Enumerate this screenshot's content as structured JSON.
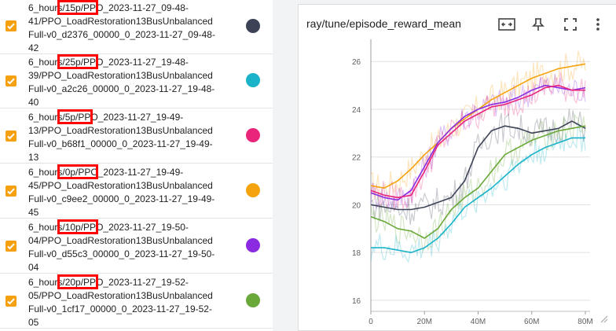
{
  "runs": [
    {
      "lines": [
        "6_hours/15p/PPO_2023-11-27_09-48-",
        "41/PPO_LoadRestoration13BusUnbalanced",
        "Full-v0_d2376_00000_0_2023-11-27_09-48-",
        "42"
      ],
      "color": "#3d4357",
      "checked": true
    },
    {
      "lines": [
        "6_hours/25p/PPO_2023-11-27_19-48-",
        "39/PPO_LoadRestoration13BusUnbalanced",
        "Full-v0_a2c26_00000_0_2023-11-27_19-48-",
        "40"
      ],
      "color": "#1ab3c9",
      "checked": true
    },
    {
      "lines": [
        "6_hours/5p/PPO_2023-11-27_19-49-",
        "13/PPO_LoadRestoration13BusUnbalanced",
        "Full-v0_b68f1_00000_0_2023-11-27_19-49-",
        "13"
      ],
      "color": "#e8257a",
      "checked": true
    },
    {
      "lines": [
        "6_hours/0p/PPO_2023-11-27_19-49-",
        "45/PPO_LoadRestoration13BusUnbalanced",
        "Full-v0_c9ee2_00000_0_2023-11-27_19-49-",
        "45"
      ],
      "color": "#f5a30f",
      "checked": true
    },
    {
      "lines": [
        "6_hours/10p/PPO_2023-11-27_19-50-",
        "04/PPO_LoadRestoration13BusUnbalanced",
        "Full-v0_d55c3_00000_0_2023-11-27_19-50-",
        "04"
      ],
      "color": "#8a2be2",
      "checked": true
    },
    {
      "lines": [
        "6_hours/20p/PPO_2023-11-27_19-52-",
        "05/PPO_LoadRestoration13BusUnbalanced",
        "Full-v0_1cf17_00000_0_2023-11-27_19-52-",
        "05"
      ],
      "color": "#6aa83a",
      "checked": true
    }
  ],
  "card": {
    "title": "ray/tune/episode_reward_mean",
    "icons": [
      "fit-domain-icon",
      "pin-icon",
      "fullscreen-icon",
      "more-vert-icon"
    ]
  },
  "chart_data": {
    "type": "line",
    "x_unit": "steps",
    "xlim": [
      0,
      80000000
    ],
    "ylim": [
      15.8,
      26.6
    ],
    "x_ticks": [
      0,
      20000000,
      40000000,
      60000000,
      80000000
    ],
    "x_tick_labels": [
      "0",
      "20M",
      "40M",
      "60M",
      "80M"
    ],
    "y_ticks": [
      16,
      18,
      20,
      22,
      24,
      26
    ],
    "y_tick_labels": [
      "16",
      "18",
      "20",
      "22",
      "24",
      "26"
    ],
    "grid": "horizontal",
    "legend": "none",
    "series": [
      {
        "color": "#f5a30f",
        "x": [
          0,
          5000000,
          10000000,
          15000000,
          20000000,
          25000000,
          30000000,
          35000000,
          40000000,
          45000000,
          50000000,
          55000000,
          60000000,
          65000000,
          70000000,
          75000000,
          80000000
        ],
        "y": [
          20.8,
          20.7,
          21.0,
          21.5,
          22.1,
          22.6,
          23.2,
          23.6,
          24.0,
          24.4,
          24.7,
          25.0,
          25.3,
          25.5,
          25.7,
          25.8,
          25.9
        ]
      },
      {
        "color": "#8a2be2",
        "x": [
          0,
          5000000,
          10000000,
          15000000,
          20000000,
          25000000,
          30000000,
          35000000,
          40000000,
          45000000,
          50000000,
          55000000,
          60000000,
          65000000,
          70000000,
          75000000,
          80000000
        ],
        "y": [
          20.5,
          20.3,
          20.2,
          20.6,
          21.6,
          22.6,
          23.2,
          23.7,
          24.0,
          24.2,
          24.3,
          24.5,
          24.8,
          25.0,
          24.9,
          24.8,
          24.9
        ]
      },
      {
        "color": "#e8257a",
        "x": [
          0,
          5000000,
          10000000,
          15000000,
          20000000,
          25000000,
          30000000,
          35000000,
          40000000,
          45000000,
          50000000,
          55000000,
          60000000,
          65000000,
          70000000,
          75000000,
          80000000
        ],
        "y": [
          20.6,
          20.4,
          20.3,
          20.4,
          21.4,
          22.5,
          23.0,
          23.5,
          23.8,
          24.1,
          24.2,
          24.4,
          24.6,
          24.9,
          25.0,
          24.8,
          24.8
        ]
      },
      {
        "color": "#3d4357",
        "x": [
          0,
          5000000,
          10000000,
          15000000,
          20000000,
          25000000,
          30000000,
          35000000,
          40000000,
          45000000,
          50000000,
          55000000,
          60000000,
          65000000,
          70000000,
          75000000,
          80000000
        ],
        "y": [
          20.0,
          19.9,
          19.8,
          19.8,
          19.9,
          20.1,
          20.3,
          21.0,
          22.4,
          23.1,
          23.3,
          23.2,
          23.0,
          23.1,
          23.2,
          23.5,
          23.2
        ]
      },
      {
        "color": "#6aa83a",
        "x": [
          0,
          5000000,
          10000000,
          15000000,
          20000000,
          25000000,
          30000000,
          35000000,
          40000000,
          45000000,
          50000000,
          55000000,
          60000000,
          65000000,
          70000000,
          75000000,
          80000000
        ],
        "y": [
          19.5,
          19.3,
          19.0,
          18.9,
          18.6,
          19.0,
          19.8,
          20.3,
          20.7,
          21.4,
          22.1,
          22.4,
          22.7,
          22.9,
          23.1,
          23.2,
          23.3
        ]
      },
      {
        "color": "#1ab3c9",
        "x": [
          0,
          5000000,
          10000000,
          15000000,
          20000000,
          25000000,
          30000000,
          35000000,
          40000000,
          45000000,
          50000000,
          55000000,
          60000000,
          65000000,
          70000000,
          75000000,
          80000000
        ],
        "y": [
          18.2,
          18.2,
          18.1,
          18.0,
          18.2,
          18.6,
          19.2,
          19.9,
          20.3,
          20.7,
          21.2,
          21.7,
          22.1,
          22.4,
          22.6,
          22.8,
          22.8
        ]
      }
    ]
  }
}
